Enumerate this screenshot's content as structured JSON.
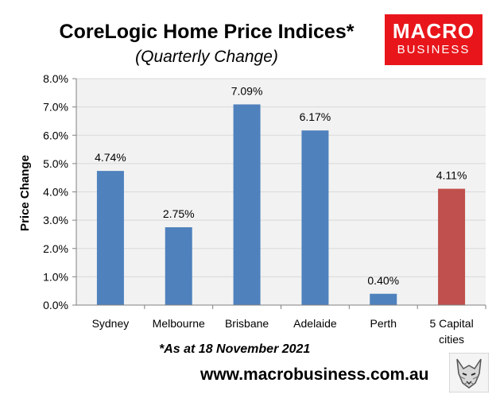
{
  "header": {
    "title": "CoreLogic Home Price Indices*",
    "subtitle": "(Quarterly Change)"
  },
  "logo": {
    "line1": "MACRO",
    "line2": "BUSINESS",
    "color": "#e8161b"
  },
  "footer": {
    "note": "*As at 18 November 2021",
    "website": "www.macrobusiness.com.au",
    "icon": "wolf-logo-icon"
  },
  "chart_data": {
    "type": "bar",
    "categories": [
      "Sydney",
      "Melbourne",
      "Brisbane",
      "Adelaide",
      "Perth",
      "5 Capital cities"
    ],
    "values": [
      4.74,
      2.75,
      7.09,
      6.17,
      0.4,
      4.11
    ],
    "data_labels": [
      "4.74%",
      "2.75%",
      "7.09%",
      "6.17%",
      "0.40%",
      "4.11%"
    ],
    "bar_colors": [
      "#4f81bd",
      "#4f81bd",
      "#4f81bd",
      "#4f81bd",
      "#4f81bd",
      "#c0504d"
    ],
    "ylabel": "Price Change",
    "ylim": [
      0,
      8
    ],
    "yticks": [
      "0.0%",
      "1.0%",
      "2.0%",
      "3.0%",
      "4.0%",
      "5.0%",
      "6.0%",
      "7.0%",
      "8.0%"
    ],
    "grid": true,
    "plot_background": "#f2f2f2"
  }
}
